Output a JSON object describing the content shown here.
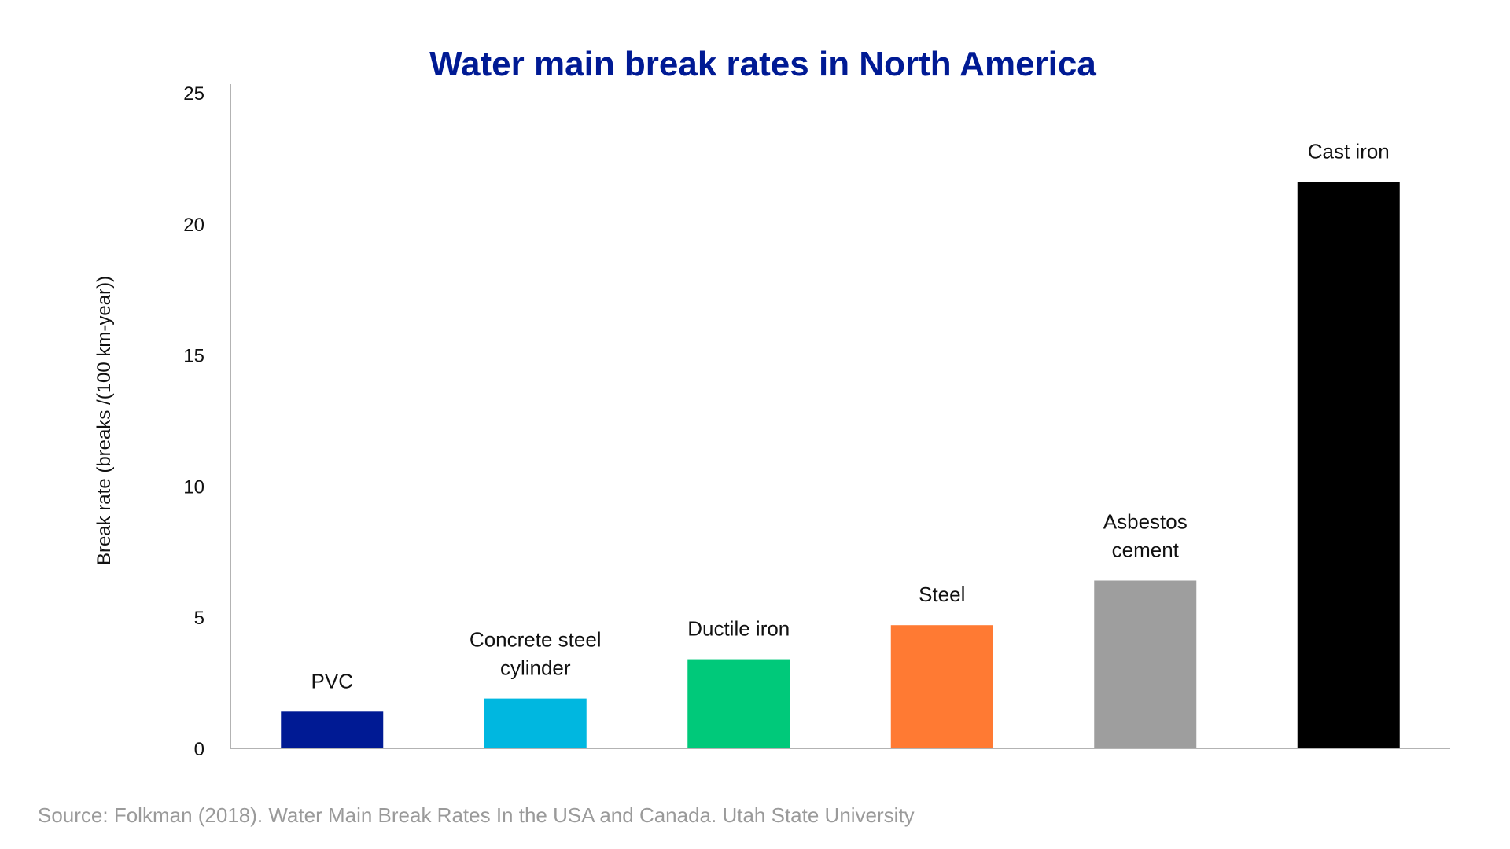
{
  "chart_data": {
    "type": "bar",
    "title": "Water main break rates in North America",
    "ylabel": "Break rate (breaks /(100 km-year))",
    "xlabel": "",
    "ylim": [
      0,
      25
    ],
    "yticks": [
      0,
      5,
      10,
      15,
      20,
      25
    ],
    "grid": false,
    "legend": "none",
    "categories": [
      {
        "lines": [
          "PVC"
        ]
      },
      {
        "lines": [
          "Concrete steel",
          "cylinder"
        ]
      },
      {
        "lines": [
          "Ductile iron"
        ]
      },
      {
        "lines": [
          "Steel"
        ]
      },
      {
        "lines": [
          "Asbestos",
          "cement"
        ]
      },
      {
        "lines": [
          "Cast iron"
        ]
      }
    ],
    "values": [
      1.4,
      1.9,
      3.4,
      4.7,
      6.4,
      21.6
    ],
    "colors": [
      "#001a94",
      "#00b7e0",
      "#00c97a",
      "#ff7a33",
      "#9e9e9e",
      "#000000"
    ],
    "title_color": "#001a94",
    "source": "Source: Folkman (2018). Water Main Break Rates In the USA and Canada. Utah State University"
  }
}
